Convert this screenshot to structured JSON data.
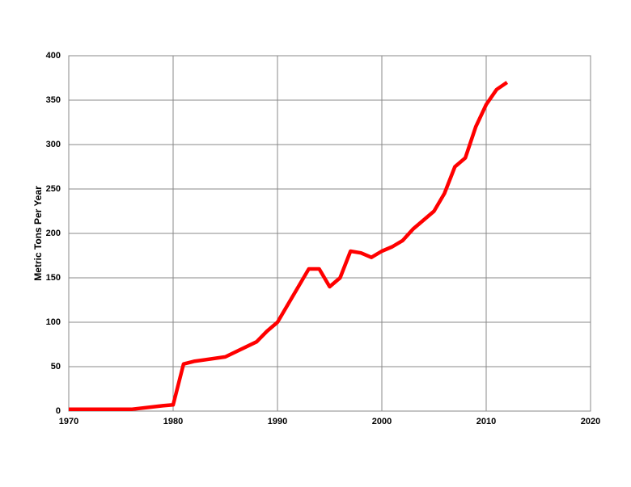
{
  "chart_data": {
    "type": "line",
    "y_label": "Metric Tons Per Year",
    "x": [
      1970,
      1976,
      1979,
      1980,
      1981,
      1982,
      1985,
      1988,
      1989,
      1990,
      1993,
      1994,
      1995,
      1996,
      1997,
      1998,
      1999,
      2000,
      2001,
      2002,
      2003,
      2005,
      2006,
      2007,
      2008,
      2009,
      2010,
      2011,
      2012
    ],
    "series": [
      {
        "color": "#ff0000",
        "values": [
          2,
          2,
          6,
          7,
          53,
          56,
          61,
          78,
          90,
          100,
          160,
          160,
          140,
          150,
          180,
          178,
          173,
          180,
          185,
          192,
          205,
          225,
          245,
          275,
          285,
          320,
          345,
          362,
          370
        ]
      }
    ],
    "xlim": [
      1970,
      2020
    ],
    "xticks": [
      1970,
      1980,
      1990,
      2000,
      2010,
      2020
    ],
    "ylim": [
      0,
      400
    ],
    "yticks": [
      0,
      50,
      100,
      150,
      200,
      250,
      300,
      350,
      400
    ],
    "grid": true
  }
}
